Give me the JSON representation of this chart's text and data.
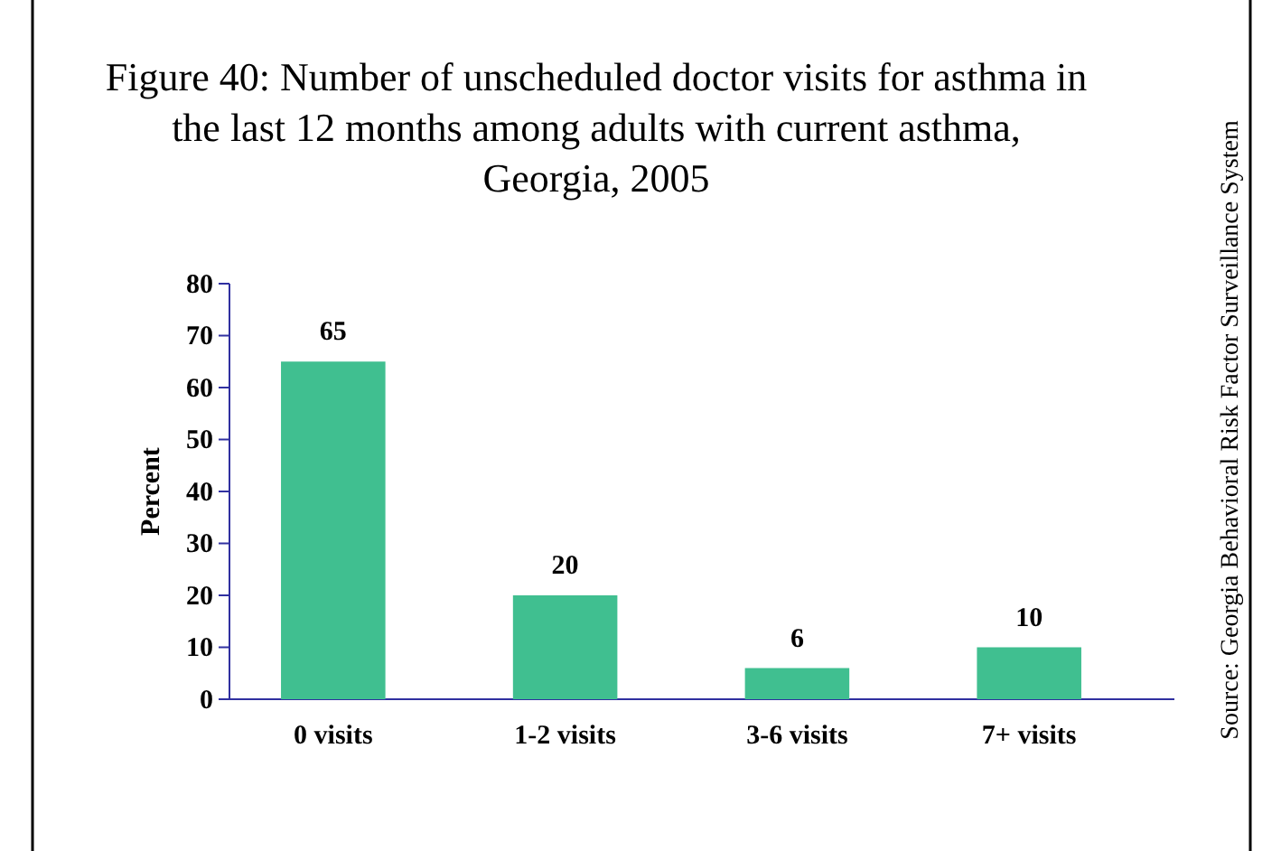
{
  "chart_data": {
    "type": "bar",
    "title": "Figure 40: Number of unscheduled doctor visits for asthma in the last 12 months among adults with current asthma, Georgia, 2005",
    "ylabel": "Percent",
    "categories": [
      "0 visits",
      "1-2 visits",
      "3-6 visits",
      "7+ visits"
    ],
    "values": [
      65,
      20,
      6,
      10
    ],
    "color": "#40bf90",
    "ylim": [
      0,
      80
    ],
    "yticks": [
      0,
      10,
      20,
      30,
      40,
      50,
      60,
      70,
      80
    ],
    "data_labels": true,
    "annotations": [
      "Source: Georgia Behavioral Risk Factor Surveillance System"
    ]
  }
}
